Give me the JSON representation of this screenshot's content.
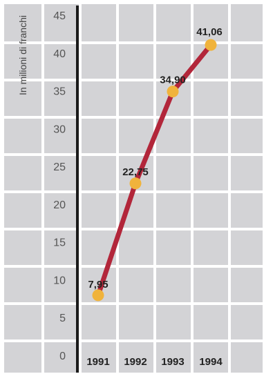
{
  "chart_data": {
    "type": "line",
    "ylabel": "In milioni di franchi",
    "categories": [
      "1991",
      "1992",
      "1993",
      "1994"
    ],
    "series": [
      {
        "values": [
          7.95,
          22.75,
          34.9,
          41.06
        ],
        "labels": [
          "7,95",
          "22,75",
          "34,90",
          "41,06"
        ]
      }
    ],
    "yticks": [
      "0",
      "5",
      "10",
      "15",
      "20",
      "25",
      "30",
      "35",
      "40",
      "45"
    ],
    "ylim": [
      0,
      45
    ],
    "grid": true,
    "colors": {
      "line": "#b2263a",
      "marker": "#f0b33c",
      "cell": "#d3d3d6",
      "gridline": "#ffffff",
      "axis": "#1a1a1a"
    }
  }
}
